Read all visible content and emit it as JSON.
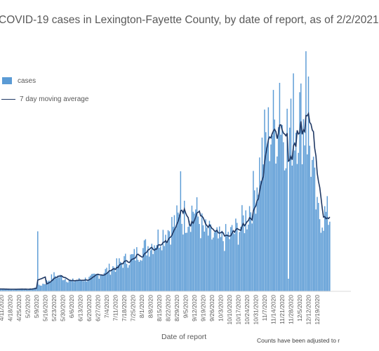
{
  "chart_data": {
    "type": "bar",
    "title": "COVID-19 cases in Lexington-Fayette County, by date of report, as of 2/2/2021",
    "xlabel": "Date of report",
    "ylabel": "",
    "footnote": "Counts have been adjusted to r",
    "ylim": [
      0,
      400
    ],
    "grid": false,
    "legend_position": "top-left",
    "colors": {
      "cases": "#5b9bd5",
      "average": "#1f3864"
    },
    "series": [
      {
        "name": "cases",
        "kind": "bar"
      },
      {
        "name": "7 day moving average",
        "kind": "line"
      }
    ],
    "tick_labels": [
      "4/11/2020",
      "4/18/2020",
      "4/25/2020",
      "5/2/2020",
      "5/9/2020",
      "5/16/2020",
      "5/23/2020",
      "5/30/2020",
      "6/6/2020",
      "6/13/2020",
      "6/20/2020",
      "6/27/2020",
      "7/4/2020",
      "7/11/2020",
      "7/18/2020",
      "7/25/2020",
      "8/1/2020",
      "8/8/2020",
      "8/15/2020",
      "8/22/2020",
      "8/29/2020",
      "9/5/2020",
      "9/12/2020",
      "9/19/2020",
      "9/26/2020",
      "10/3/2020",
      "10/10/2020",
      "10/17/2020",
      "10/24/2020",
      "10/31/2020",
      "11/7/2020",
      "11/14/2020",
      "11/21/2020",
      "11/28/2020",
      "12/5/2020",
      "12/12/2020",
      "12/19/2020"
    ],
    "weekly_cases": [
      4,
      3,
      4,
      3,
      6,
      14,
      25,
      22,
      16,
      18,
      20,
      26,
      33,
      40,
      48,
      54,
      66,
      74,
      86,
      98,
      110,
      120,
      132,
      96,
      86,
      80,
      88,
      98,
      120,
      165,
      235,
      262,
      262,
      250,
      280,
      250,
      120
    ],
    "spikes": [
      {
        "week": 4,
        "offset": 1,
        "value": 95
      },
      {
        "week": 20,
        "offset": 3,
        "value": 190
      },
      {
        "week": 31,
        "offset": 5,
        "value": 330
      },
      {
        "week": 33,
        "offset": 2,
        "value": 345
      },
      {
        "week": 34,
        "offset": 5,
        "value": 380
      },
      {
        "week": 35,
        "offset": 0,
        "value": 340
      }
    ],
    "dips": [
      {
        "week": 32,
        "offset": 5,
        "value": 20
      }
    ],
    "legend_labels": {
      "cases": "cases",
      "average": "7 day moving average"
    }
  }
}
